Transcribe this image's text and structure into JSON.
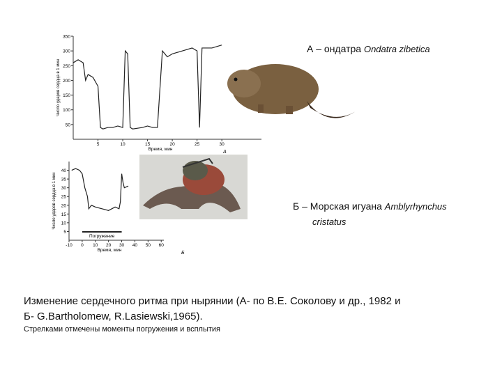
{
  "charts": {
    "chart_data": [
      {
        "type": "line",
        "panel_label": "А",
        "y_label": "Число ударов сердца в 1 мин",
        "x_label": "Время, мин",
        "x": [
          0,
          1,
          2,
          2.5,
          3,
          4,
          5,
          5.5,
          6,
          7,
          8,
          9,
          10,
          10.5,
          11,
          11.5,
          12,
          14,
          15,
          16,
          17,
          18,
          18.5,
          19,
          20,
          22,
          24,
          25,
          25.5,
          26,
          28,
          30
        ],
        "values": [
          260,
          270,
          260,
          200,
          220,
          210,
          180,
          40,
          35,
          40,
          40,
          45,
          40,
          300,
          290,
          40,
          35,
          40,
          45,
          40,
          40,
          300,
          290,
          280,
          290,
          300,
          310,
          300,
          40,
          310,
          310,
          320
        ],
        "color": "#222222",
        "xlim": [
          0,
          38
        ],
        "ylim": [
          0,
          350
        ],
        "xticks": [
          5,
          10,
          15,
          20,
          25,
          30
        ],
        "yticks": [
          50,
          100,
          150,
          200,
          250,
          300,
          350
        ]
      },
      {
        "type": "line",
        "panel_label": "Б",
        "y_label": "Число ударов сердца в 1 мин",
        "x_label": "Время, мин",
        "x": [
          -8,
          -5,
          -2,
          0,
          2,
          4,
          5,
          7,
          10,
          15,
          20,
          25,
          28,
          29,
          30,
          31,
          32,
          35
        ],
        "values": [
          40,
          41,
          40,
          38,
          30,
          25,
          18,
          20,
          19,
          18,
          17,
          19,
          18,
          22,
          38,
          33,
          30,
          31
        ],
        "color": "#222222",
        "xlim": [
          -10,
          62
        ],
        "ylim": [
          0,
          45
        ],
        "xticks": [
          -10,
          0,
          10,
          20,
          30,
          40,
          50,
          60
        ],
        "yticks": [
          5,
          10,
          15,
          20,
          25,
          30,
          35,
          40
        ],
        "dive": {
          "label": "Погружение",
          "start": 0,
          "end": 30
        }
      }
    ]
  },
  "captions": {
    "muskrat": {
      "prefix": "А – ондатра ",
      "latin": "Ondatra zibetica"
    },
    "iguana": {
      "prefix": "Б – Морская игуана ",
      "latin_1": "Amblyrhynchus",
      "latin_2": "cristatus"
    }
  },
  "footer": {
    "line_1": "Изменение сердечного ритма при нырянии (А- по В.Е. Соколову и др., 1982  и",
    "line_2": "Б- G.Bartholomew, R.Lasiewski,1965).",
    "note": "Стрелками отмечены моменты погружения и всплытия"
  }
}
